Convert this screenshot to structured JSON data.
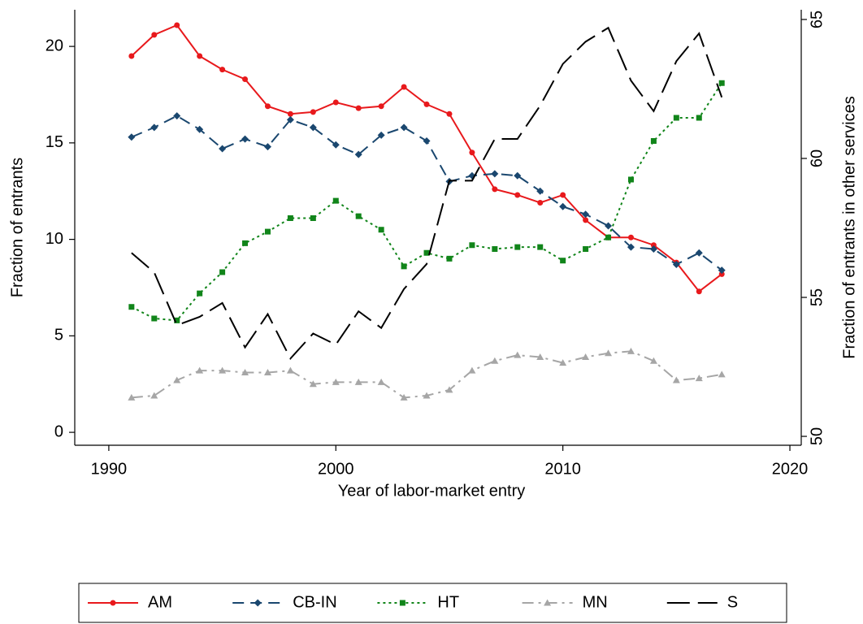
{
  "chart_data": {
    "type": "line",
    "x_label": "Year of labor-market entry",
    "y_label": "Fraction of entrants",
    "y2_label": "Fraction of entrants in other services",
    "x": [
      1991,
      1992,
      1993,
      1994,
      1995,
      1996,
      1997,
      1998,
      1999,
      2000,
      2001,
      2002,
      2003,
      2004,
      2005,
      2006,
      2007,
      2008,
      2009,
      2010,
      2011,
      2012,
      2013,
      2014,
      2015,
      2016,
      2017
    ],
    "xlim": [
      1988.5,
      2020.5
    ],
    "xticks": [
      1990,
      2000,
      2010,
      2020
    ],
    "ylim": [
      -0.67,
      21.9
    ],
    "yticks": [
      0,
      5,
      10,
      15,
      20
    ],
    "y2lim": [
      49.68,
      65.35
    ],
    "y2ticks": [
      50,
      55,
      60,
      65
    ],
    "legend": "bottom",
    "series": [
      {
        "name": "AM",
        "color": "#e8191c",
        "marker": "circle",
        "line_style": "solid",
        "values": [
          19.5,
          20.6,
          21.1,
          19.5,
          18.8,
          18.3,
          16.9,
          16.5,
          16.6,
          17.1,
          16.8,
          16.9,
          17.9,
          17.0,
          16.5,
          14.5,
          12.6,
          12.3,
          11.9,
          12.3,
          11.0,
          10.1,
          10.1,
          9.7,
          8.8,
          7.3,
          8.2
        ]
      },
      {
        "name": "CB-IN",
        "color": "#1a476f",
        "marker": "diamond",
        "line_style": "dash",
        "values": [
          15.3,
          15.8,
          16.4,
          15.7,
          14.7,
          15.2,
          14.8,
          16.2,
          15.8,
          14.9,
          14.4,
          15.4,
          15.8,
          15.1,
          13.0,
          13.3,
          13.4,
          13.3,
          12.5,
          11.7,
          11.3,
          10.7,
          9.6,
          9.5,
          8.7,
          9.3,
          8.4
        ]
      },
      {
        "name": "HT",
        "color": "#11851a",
        "marker": "square",
        "line_style": "dot",
        "values": [
          6.5,
          5.9,
          5.8,
          7.2,
          8.3,
          9.8,
          10.4,
          11.1,
          11.1,
          12.0,
          11.2,
          10.5,
          8.6,
          9.3,
          9.0,
          9.7,
          9.5,
          9.6,
          9.6,
          8.9,
          9.5,
          10.1,
          13.1,
          15.1,
          16.3,
          16.3,
          18.1
        ]
      },
      {
        "name": "MN",
        "color": "#a6a6a6",
        "marker": "triangle",
        "line_style": "dashdot",
        "values": [
          1.8,
          1.9,
          2.7,
          3.2,
          3.2,
          3.1,
          3.1,
          3.2,
          2.5,
          2.6,
          2.6,
          2.6,
          1.8,
          1.9,
          2.2,
          3.2,
          3.7,
          4.0,
          3.9,
          3.6,
          3.9,
          4.1,
          4.2,
          3.7,
          2.7,
          2.8,
          3.0
        ]
      },
      {
        "name": "S",
        "color": "#000000",
        "marker": "none",
        "line_style": "longdash",
        "axis": "y2",
        "values": [
          56.6,
          55.9,
          54.0,
          54.3,
          54.8,
          53.2,
          54.4,
          52.8,
          53.7,
          53.3,
          54.5,
          53.9,
          55.3,
          56.2,
          59.2,
          59.2,
          60.7,
          60.7,
          61.9,
          63.4,
          64.2,
          64.7,
          62.8,
          61.7,
          63.5,
          64.5,
          62.2
        ]
      }
    ]
  }
}
